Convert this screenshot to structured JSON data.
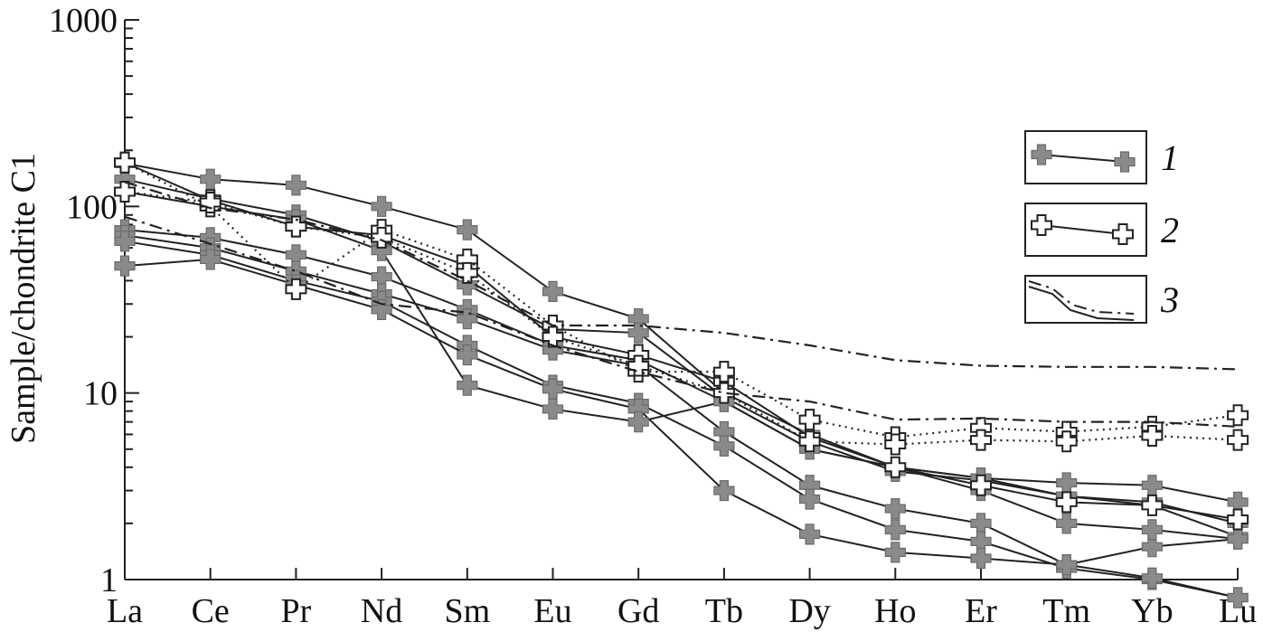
{
  "chart_data": {
    "type": "line",
    "ylabel": "Sample/chondrite C1",
    "yscale": "log",
    "ylim": [
      1,
      1000
    ],
    "yticks": [
      1,
      10,
      100,
      1000
    ],
    "ytick_labels": [
      "1",
      "10",
      "100",
      "1000"
    ],
    "categories": [
      "La",
      "Ce",
      "Pr",
      "Nd",
      "Sm",
      "Eu",
      "Gd",
      "Tb",
      "Dy",
      "Ho",
      "Er",
      "Tm",
      "Yb",
      "Lu"
    ],
    "legend": {
      "position": "right",
      "entries": [
        {
          "label": "1",
          "style": "solid-gray-cross"
        },
        {
          "label": "2",
          "style": "solid-open-cross"
        },
        {
          "label": "3",
          "style": "dash-dot-dotted"
        }
      ]
    },
    "series": [
      {
        "group": "1",
        "line": "solid",
        "marker": "gray-cross",
        "values": [
          170,
          140,
          130,
          100,
          75,
          35,
          25,
          10,
          6,
          4,
          3.5,
          2.8,
          2.6,
          2.0
        ]
      },
      {
        "group": "1",
        "line": "solid",
        "marker": "gray-cross",
        "values": [
          140,
          110,
          90,
          65,
          38,
          22,
          21,
          9.5,
          5.5,
          3.8,
          3.4,
          2.8,
          2.5,
          1.7
        ]
      },
      {
        "group": "1",
        "line": "solid",
        "marker": "gray-cross",
        "values": [
          75,
          68,
          55,
          42,
          28,
          18,
          15,
          9,
          5,
          4,
          3.5,
          3.3,
          3.2,
          2.6
        ]
      },
      {
        "group": "1",
        "line": "solid",
        "marker": "gray-cross",
        "values": [
          70,
          60,
          45,
          34,
          25,
          17,
          14,
          6.2,
          3.2,
          2.4,
          2.0,
          1.2,
          1.5,
          1.65
        ]
      },
      {
        "group": "1",
        "line": "solid",
        "marker": "gray-cross",
        "values": [
          65,
          55,
          40,
          31,
          18,
          11,
          8.8,
          5.2,
          2.7,
          1.85,
          1.6,
          1.15,
          1.0,
          0.8
        ]
      },
      {
        "group": "1",
        "line": "solid",
        "marker": "gray-cross",
        "values": [
          48,
          52,
          38,
          28,
          16,
          10.5,
          8.2,
          3.0,
          1.75,
          1.4,
          1.3,
          1.2,
          1.02,
          0.8
        ]
      },
      {
        "group": "1",
        "line": "solid",
        "marker": "gray-cross",
        "values": [
          120,
          100,
          85,
          58,
          11,
          8.2,
          7.0,
          9.0,
          5.0,
          4.0,
          3.0,
          2.0,
          1.85,
          1.65
        ]
      },
      {
        "group": "2",
        "line": "solid",
        "marker": "open-cross",
        "values": [
          172,
          108,
          78,
          70,
          48,
          20,
          16,
          11.5,
          5.8,
          4.0,
          3.2,
          2.6,
          2.5,
          2.1
        ]
      },
      {
        "group": "2",
        "line": "dotted",
        "marker": "open-cross",
        "values": [
          172,
          100,
          36,
          75,
          52,
          23,
          13,
          13,
          7.2,
          5.8,
          6.5,
          6.2,
          6.6,
          7.6
        ]
      },
      {
        "group": "2",
        "line": "dotted",
        "marker": "open-cross",
        "values": [
          120,
          105,
          78,
          68,
          44,
          20,
          14,
          10,
          5.5,
          5.3,
          5.6,
          5.5,
          5.9,
          5.6
        ]
      },
      {
        "group": "3",
        "line": "dash-dot",
        "marker": "none",
        "values": [
          135,
          98,
          85,
          66,
          40,
          23,
          23,
          21,
          18,
          15,
          14,
          13.8,
          13.8,
          13.4
        ]
      },
      {
        "group": "3",
        "line": "dash-dot",
        "marker": "none",
        "values": [
          88,
          63,
          45,
          30,
          27,
          18,
          13,
          10,
          9,
          7.2,
          7.3,
          7.0,
          7.0,
          6.6
        ]
      }
    ]
  }
}
